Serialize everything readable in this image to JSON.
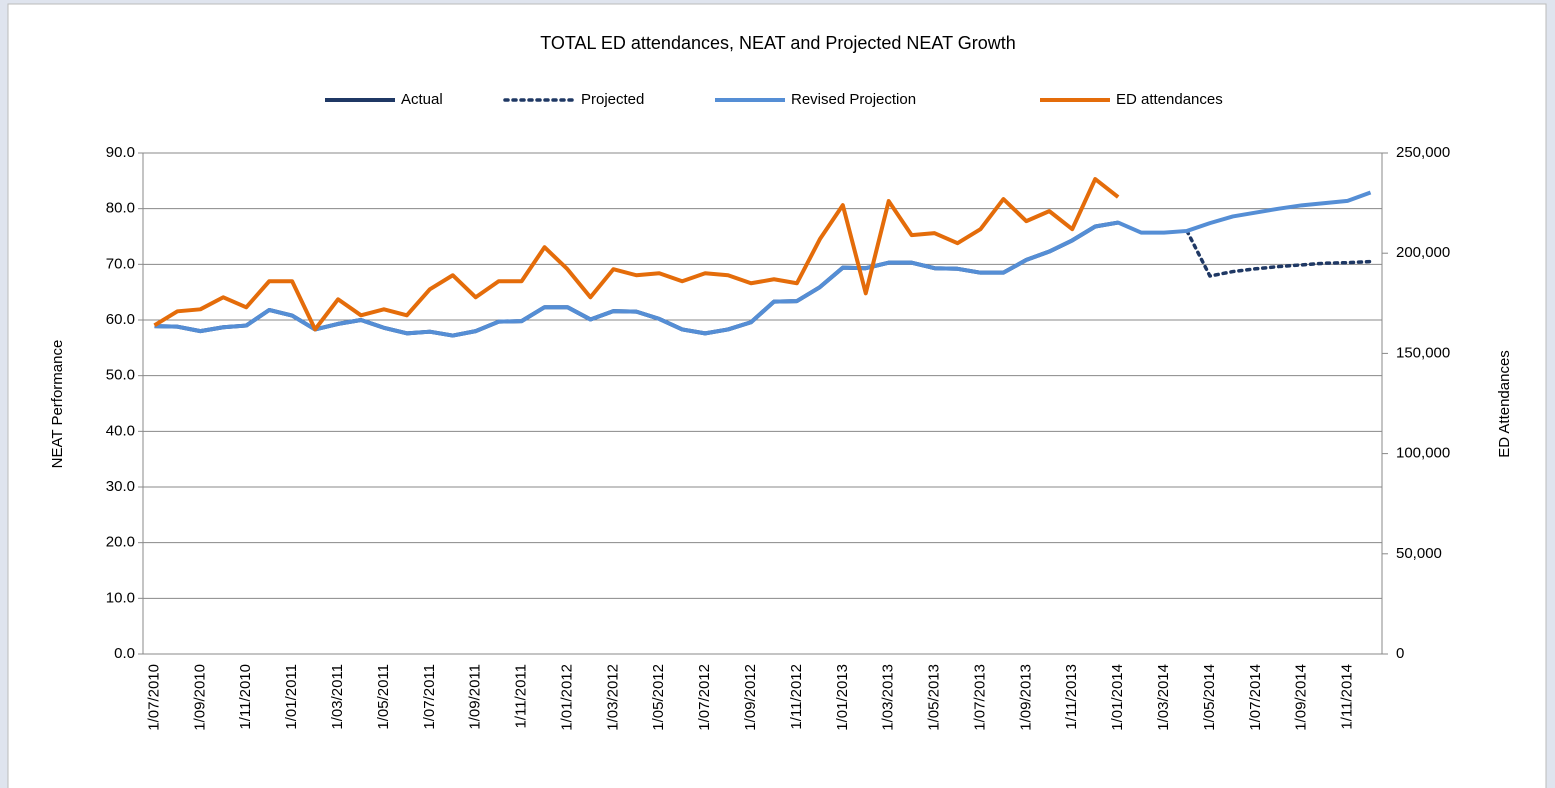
{
  "chart_data": {
    "type": "line",
    "title": "TOTAL ED attendances, NEAT and Projected NEAT Growth",
    "ylabel": "NEAT Performance",
    "y2label": "ED Attendances",
    "categories": [
      "1/07/2010",
      null,
      "1/09/2010",
      null,
      "1/11/2010",
      null,
      "1/01/2011",
      null,
      "1/03/2011",
      null,
      "1/05/2011",
      null,
      "1/07/2011",
      null,
      "1/09/2011",
      null,
      "1/11/2011",
      null,
      "1/01/2012",
      null,
      "1/03/2012",
      null,
      "1/05/2012",
      null,
      "1/07/2012",
      null,
      "1/09/2012",
      null,
      "1/11/2012",
      null,
      "1/01/2013",
      null,
      "1/03/2013",
      null,
      "1/05/2013",
      null,
      "1/07/2013",
      null,
      "1/09/2013",
      null,
      "1/11/2013",
      null,
      "1/01/2014",
      null,
      "1/03/2014",
      null,
      "1/05/2014",
      null,
      "1/07/2014",
      null,
      "1/09/2014",
      null,
      "1/11/2014",
      null
    ],
    "ylim": [
      0,
      90
    ],
    "yticks": [
      {
        "value": 0,
        "label": "0.0"
      },
      {
        "value": 10,
        "label": "10.0"
      },
      {
        "value": 20,
        "label": "20.0"
      },
      {
        "value": 30,
        "label": "30.0"
      },
      {
        "value": 40,
        "label": "40.0"
      },
      {
        "value": 50,
        "label": "50.0"
      },
      {
        "value": 60,
        "label": "60.0"
      },
      {
        "value": 70,
        "label": "70.0"
      },
      {
        "value": 80,
        "label": "80.0"
      },
      {
        "value": 90,
        "label": "90.0"
      }
    ],
    "y2lim": [
      0,
      250000
    ],
    "y2ticks": [
      0,
      {
        "value": 50000,
        "label": "50,000"
      },
      {
        "value": 100000,
        "label": "100,000"
      },
      {
        "value": 150000,
        "label": "150,000"
      },
      {
        "value": 200000,
        "label": "200,000"
      },
      {
        "value": 250000,
        "label": "250,000"
      }
    ],
    "grid": true,
    "legend": "top",
    "series": [
      {
        "name": "Actual",
        "color": "#1f3864",
        "style": "solid",
        "values": [
          58.9,
          58.8,
          58.0,
          58.7,
          59.0,
          61.8,
          60.8,
          58.3,
          59.3,
          60.0,
          58.6,
          57.6,
          57.9,
          57.2,
          58.0,
          59.7,
          59.8,
          62.3,
          62.3,
          60.1,
          61.6,
          61.5,
          60.2,
          58.3,
          57.6,
          58.3,
          59.6,
          63.3,
          63.4,
          65.9,
          69.4,
          69.3,
          70.3,
          70.3,
          69.3,
          69.2,
          68.5,
          68.5,
          70.8,
          72.3,
          74.3,
          76.8,
          77.5,
          null,
          null,
          null,
          null,
          null,
          null,
          null,
          null,
          null,
          null,
          null
        ]
      },
      {
        "name": "Projected",
        "color": "#1f3864",
        "style": "dotted",
        "values": [
          null,
          null,
          null,
          null,
          null,
          null,
          null,
          null,
          null,
          null,
          null,
          null,
          null,
          null,
          null,
          null,
          null,
          null,
          null,
          null,
          null,
          null,
          null,
          null,
          null,
          null,
          null,
          null,
          null,
          null,
          null,
          null,
          null,
          null,
          null,
          null,
          null,
          null,
          null,
          null,
          null,
          null,
          null,
          null,
          null,
          76.0,
          67.9,
          68.7,
          69.2,
          69.6,
          69.9,
          70.2,
          70.3,
          70.5
        ]
      },
      {
        "name": "Revised Projection",
        "color": "#558ed5",
        "style": "solid",
        "values": [
          58.9,
          58.8,
          58.0,
          58.7,
          59.0,
          61.8,
          60.8,
          58.3,
          59.3,
          60.0,
          58.6,
          57.6,
          57.9,
          57.2,
          58.0,
          59.7,
          59.8,
          62.3,
          62.3,
          60.1,
          61.6,
          61.5,
          60.2,
          58.3,
          57.6,
          58.3,
          59.6,
          63.3,
          63.4,
          65.9,
          69.4,
          69.3,
          70.3,
          70.3,
          69.3,
          69.2,
          68.5,
          68.5,
          70.8,
          72.3,
          74.3,
          76.8,
          77.5,
          75.7,
          75.7,
          76.0,
          77.4,
          78.6,
          79.3,
          80.0,
          80.6,
          81.0,
          81.4,
          82.9
        ]
      },
      {
        "name": "ED attendances",
        "color": "#e46c0a",
        "style": "solid",
        "axis": "y2",
        "values": [
          164000,
          171000,
          172000,
          178000,
          173000,
          186000,
          186000,
          162000,
          177000,
          169000,
          172000,
          169000,
          182000,
          189000,
          178000,
          186000,
          186000,
          203000,
          192000,
          178000,
          192000,
          189000,
          190000,
          186000,
          190000,
          189000,
          185000,
          187000,
          185000,
          207000,
          224000,
          180000,
          226000,
          209000,
          210000,
          205000,
          212000,
          227000,
          216000,
          221000,
          212000,
          237000,
          228000,
          null,
          null,
          null,
          null,
          null,
          null,
          null,
          null,
          null,
          null,
          null
        ]
      }
    ]
  }
}
